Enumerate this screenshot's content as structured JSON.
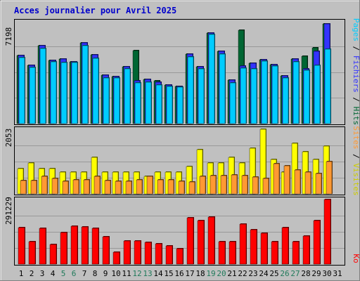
{
  "chart_data": {
    "type": "bar",
    "title": "Acces journalier pour Avril 2025",
    "categories": [
      "1",
      "2",
      "3",
      "4",
      "5",
      "6",
      "7",
      "8",
      "9",
      "10",
      "11",
      "12",
      "13",
      "14",
      "15",
      "16",
      "17",
      "18",
      "19",
      "20",
      "21",
      "22",
      "23",
      "24",
      "25",
      "26",
      "27",
      "28",
      "29",
      "30",
      "31"
    ],
    "weekend_days": [
      "5",
      "6",
      "12",
      "13",
      "19",
      "20",
      "26",
      "27"
    ],
    "panels": [
      {
        "name": "traffic",
        "axis_max_label": "7198",
        "ylim": [
          0,
          7198
        ],
        "right_labels": [
          "Pages",
          "Fichiers",
          "Hits"
        ],
        "series": [
          {
            "name": "Hits",
            "color": "#006633",
            "values": [
              4750,
              4050,
              5450,
              4400,
              4500,
              4300,
              5650,
              4800,
              3400,
              3300,
              3950,
              5100,
              3100,
              3000,
              2700,
              2600,
              4850,
              3950,
              6300,
              5050,
              3050,
              6500,
              4200,
              4450,
              4100,
              3350,
              4500,
              4700,
              5300,
              6950,
              0
            ]
          },
          {
            "name": "Fichiers",
            "color": "#3333ff",
            "values": [
              4750,
              4050,
              5450,
              4400,
              4500,
              4300,
              5650,
              4800,
              3400,
              3300,
              3950,
              3000,
              3100,
              2900,
              2700,
              2600,
              4850,
              3950,
              6300,
              5050,
              3050,
              4000,
              4200,
              4450,
              4100,
              3350,
              4500,
              3800,
              5050,
              6950,
              0
            ]
          },
          {
            "name": "Pages",
            "color": "#00ccff",
            "values": [
              4600,
              3900,
              5250,
              4300,
              4250,
              4250,
              5450,
              4550,
              3200,
              3200,
              3800,
              2850,
              2900,
              2700,
              2600,
              2550,
              4650,
              3800,
              6200,
              4850,
              2850,
              3850,
              3800,
              4350,
              4000,
              3200,
              4300,
              3700,
              4050,
              5200,
              0
            ]
          }
        ]
      },
      {
        "name": "visits",
        "axis_max_label": "2053",
        "ylim": [
          0,
          2053
        ],
        "right_labels": [
          "Sites",
          "Visites"
        ],
        "series": [
          {
            "name": "Visites",
            "color": "#ffff00",
            "values": [
              800,
              980,
              800,
              800,
              700,
              700,
              700,
              1150,
              700,
              700,
              700,
              700,
              550,
              700,
              700,
              700,
              860,
              1400,
              980,
              980,
              1150,
              980,
              1450,
              2053,
              1100,
              700,
              1600,
              1350,
              1100,
              1520,
              0
            ]
          },
          {
            "name": "Sites",
            "color": "#ff9933",
            "values": [
              420,
              420,
              550,
              480,
              410,
              450,
              450,
              550,
              420,
              400,
              400,
              450,
              560,
              450,
              450,
              400,
              380,
              550,
              570,
              580,
              600,
              580,
              540,
              500,
              960,
              900,
              750,
              700,
              640,
              1020,
              0
            ]
          }
        ]
      },
      {
        "name": "kbytes",
        "axis_max_label": "291229",
        "ylim": [
          0,
          291229
        ],
        "right_labels": [
          "Ko"
        ],
        "series": [
          {
            "name": "Ko",
            "color": "#ff0000",
            "values": [
              165000,
              100000,
              163000,
              90000,
              143000,
              172000,
              167000,
              162000,
              124000,
              55000,
              103000,
              103000,
              97000,
              92000,
              82000,
              70000,
              208000,
              196000,
              212000,
              102000,
              102000,
              180000,
              156000,
              138000,
              100000,
              164000,
              100000,
              126000,
              195000,
              291229,
              0
            ]
          }
        ]
      }
    ]
  }
}
